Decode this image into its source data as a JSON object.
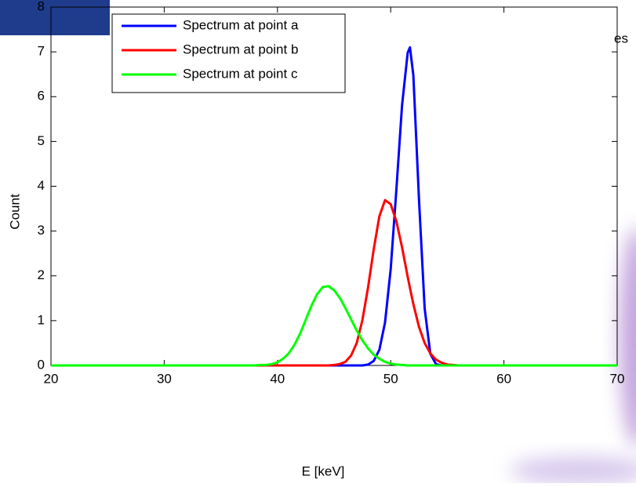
{
  "chart_data": {
    "type": "line",
    "xlabel": "E [keV]",
    "ylabel": "Count",
    "x": [
      20,
      25,
      30,
      35,
      38,
      38.5,
      39,
      39.5,
      40,
      40.5,
      41,
      41.5,
      42,
      42.5,
      43,
      43.5,
      44,
      44.5,
      45,
      45.5,
      46,
      46.5,
      47,
      47.5,
      48,
      48.5,
      49,
      49.5,
      50,
      50.5,
      51,
      51.5,
      51.7,
      52,
      52.5,
      53,
      53.5,
      54,
      54.5,
      55,
      55.5,
      56,
      60,
      65,
      70
    ],
    "series": [
      {
        "name": "Spectrum at point a",
        "color": "#0000ff",
        "values": [
          0,
          0,
          0,
          0,
          0,
          0,
          0,
          0,
          0,
          0,
          0,
          0,
          0,
          0,
          0,
          0,
          0,
          0,
          0,
          0,
          0,
          0,
          0,
          0,
          0.02,
          0.1,
          0.35,
          0.96,
          2.15,
          3.92,
          5.8,
          6.98,
          7.1,
          6.48,
          3.7,
          1.27,
          0.26,
          0.03,
          0,
          0,
          0,
          0,
          0,
          0,
          0
        ]
      },
      {
        "name": "Spectrum at point b",
        "color": "#ff0000",
        "values": [
          0,
          0,
          0,
          0,
          0,
          0,
          0,
          0,
          0,
          0,
          0,
          0,
          0,
          0,
          0,
          0,
          0,
          0,
          0.01,
          0.03,
          0.08,
          0.22,
          0.5,
          1.01,
          1.74,
          2.59,
          3.33,
          3.69,
          3.6,
          3.22,
          2.64,
          1.98,
          1.73,
          1.37,
          0.86,
          0.5,
          0.27,
          0.13,
          0.06,
          0.02,
          0.01,
          0,
          0,
          0,
          0
        ]
      },
      {
        "name": "Spectrum at point c",
        "color": "#00ff00",
        "values": [
          0,
          0,
          0,
          0,
          0,
          0.01,
          0.01,
          0.03,
          0.07,
          0.15,
          0.27,
          0.46,
          0.71,
          1.02,
          1.33,
          1.59,
          1.75,
          1.77,
          1.68,
          1.51,
          1.28,
          1.03,
          0.78,
          0.56,
          0.38,
          0.24,
          0.15,
          0.08,
          0.04,
          0.02,
          0.01,
          0,
          0,
          0,
          0,
          0,
          0,
          0,
          0,
          0,
          0,
          0,
          0,
          0,
          0
        ]
      }
    ],
    "xlim": [
      20,
      70
    ],
    "xticks": [
      20,
      30,
      40,
      50,
      60,
      70
    ],
    "ylim": [
      0,
      8
    ],
    "yticks": [
      0,
      1,
      2,
      3,
      4,
      5,
      6,
      7,
      8
    ],
    "grid": false,
    "legend": "upper left"
  },
  "overlay_text": "es"
}
